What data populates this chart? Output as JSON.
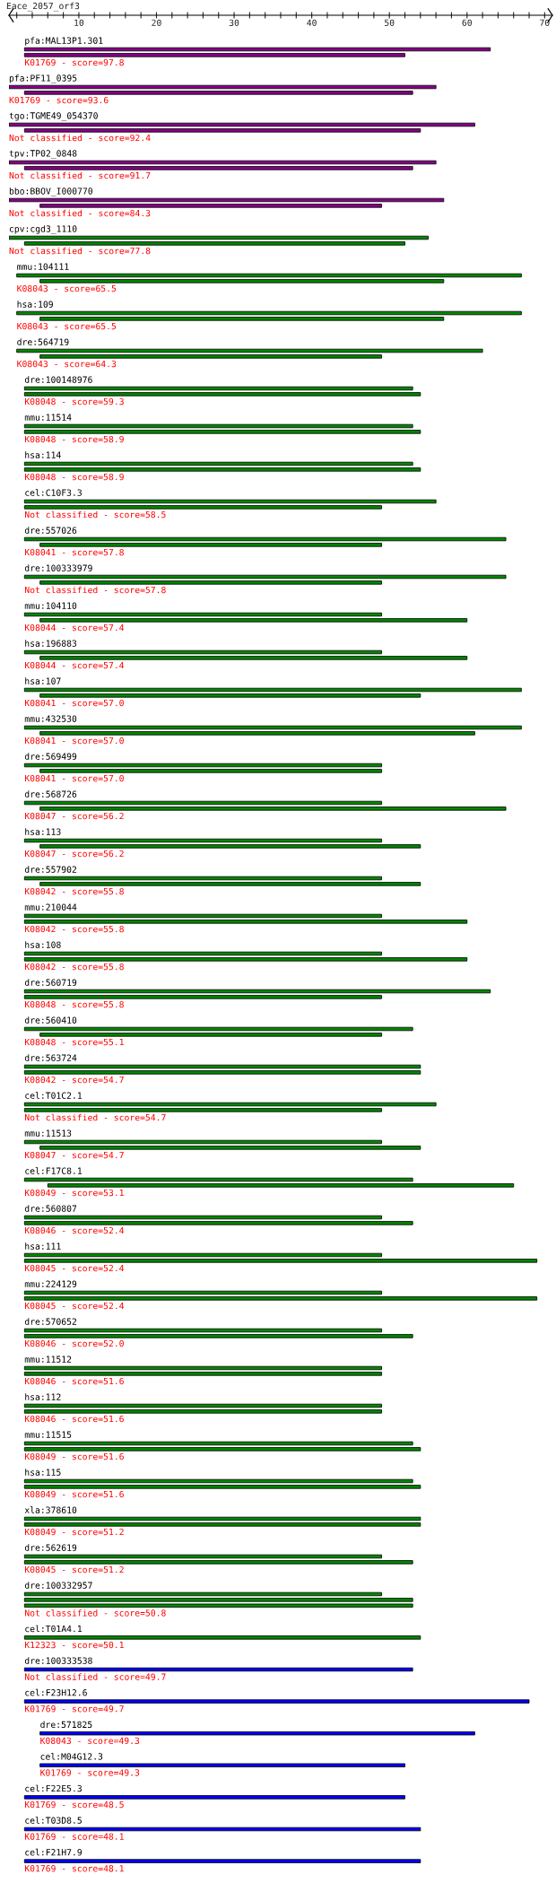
{
  "chart_data": {
    "type": "bar",
    "orientation": "horizontal",
    "title": "Eace_2057_orf3",
    "xlim": [
      1,
      71
    ],
    "xticks": [
      {
        "value": 2,
        "label": null
      },
      {
        "value": 4,
        "label": null
      },
      {
        "value": 6,
        "label": null
      },
      {
        "value": 8,
        "label": null
      },
      10,
      {
        "value": 12,
        "label": null
      },
      {
        "value": 14,
        "label": null
      },
      {
        "value": 16,
        "label": null
      },
      {
        "value": 18,
        "label": null
      },
      20,
      {
        "value": 22,
        "label": null
      },
      {
        "value": 24,
        "label": null
      },
      {
        "value": 26,
        "label": null
      },
      {
        "value": 28,
        "label": null
      },
      30,
      {
        "value": 32,
        "label": null
      },
      {
        "value": 34,
        "label": null
      },
      {
        "value": 36,
        "label": null
      },
      {
        "value": 38,
        "label": null
      },
      40,
      {
        "value": 42,
        "label": null
      },
      {
        "value": 44,
        "label": null
      },
      {
        "value": 46,
        "label": null
      },
      {
        "value": 48,
        "label": null
      },
      50,
      {
        "value": 52,
        "label": null
      },
      {
        "value": 54,
        "label": null
      },
      {
        "value": 56,
        "label": null
      },
      {
        "value": 58,
        "label": null
      },
      60,
      {
        "value": 62,
        "label": null
      },
      {
        "value": 64,
        "label": null
      },
      {
        "value": 66,
        "label": null
      },
      {
        "value": 68,
        "label": null
      },
      70
    ],
    "categories": [
      "pfa:MAL13P1.301",
      "pfa:PF11_0395",
      "tgo:TGME49_054370",
      "tpv:TP02_0848",
      "bbo:BBOV_I000770",
      "cpv:cgd3_1110",
      "mmu:104111",
      "hsa:109",
      "dre:564719",
      "dre:100148976",
      "mmu:11514",
      "hsa:114",
      "cel:C10F3.3",
      "dre:557026",
      "dre:100333979",
      "mmu:104110",
      "hsa:196883",
      "hsa:107",
      "mmu:432530",
      "dre:569499",
      "dre:568726",
      "hsa:113",
      "dre:557902",
      "mmu:210044",
      "hsa:108",
      "dre:560719",
      "dre:560410",
      "dre:563724",
      "cel:T01C2.1",
      "mmu:11513",
      "cel:F17C8.1",
      "dre:560807",
      "hsa:111",
      "mmu:224129",
      "dre:570652",
      "mmu:11512",
      "hsa:112",
      "mmu:11515",
      "hsa:115",
      "xla:378610",
      "dre:562619",
      "dre:100332957",
      "cel:T01A4.1",
      "dre:100333538",
      "cel:F23H12.6",
      "dre:571825",
      "cel:M04G12.3",
      "cel:F22E5.3",
      "cel:T03D8.5",
      "cel:F21H7.9"
    ],
    "series": [
      {
        "base": [
          3,
          1,
          1,
          1,
          1,
          1,
          2,
          2,
          2,
          3,
          3,
          3,
          3,
          3,
          3,
          3,
          3,
          3,
          3,
          3,
          3,
          3,
          3,
          3,
          3,
          3,
          3,
          3,
          3,
          3,
          3,
          3,
          3,
          3,
          3,
          3,
          3,
          3,
          3,
          3,
          3,
          3,
          3,
          3,
          3,
          5,
          5,
          3,
          3,
          3
        ],
        "values": [
          60,
          55,
          60,
          55,
          56,
          54,
          65,
          65,
          60,
          50,
          50,
          50,
          53,
          62,
          62,
          46,
          46,
          64,
          64,
          46,
          46,
          46,
          46,
          46,
          46,
          60,
          50,
          51,
          53,
          46,
          50,
          46,
          46,
          46,
          46,
          46,
          46,
          50,
          50,
          51,
          46,
          46,
          51,
          50,
          65,
          56,
          47,
          49,
          51,
          51
        ],
        "colors": [
          "#880088",
          "#880088",
          "#880088",
          "#880088",
          "#880088",
          "#008800",
          "#008800",
          "#008800",
          "#008800",
          "#008800",
          "#008800",
          "#008800",
          "#008800",
          "#008800",
          "#008800",
          "#008800",
          "#008800",
          "#008800",
          "#008800",
          "#008800",
          "#008800",
          "#008800",
          "#008800",
          "#008800",
          "#008800",
          "#008800",
          "#008800",
          "#008800",
          "#008800",
          "#008800",
          "#008800",
          "#008800",
          "#008800",
          "#008800",
          "#008800",
          "#008800",
          "#008800",
          "#008800",
          "#008800",
          "#008800",
          "#008800",
          "#008800",
          "#008800",
          "#0000ff",
          "#0000ff",
          "#0000ff",
          "#0000ff",
          "#0000ff",
          "#0000ff",
          "#0000ff"
        ]
      },
      {
        "base": [
          3,
          3,
          3,
          3,
          5,
          3,
          5,
          5,
          5,
          3,
          3,
          3,
          3,
          5,
          5,
          5,
          5,
          5,
          5,
          5,
          5,
          5,
          5,
          3,
          3,
          3,
          5,
          3,
          3,
          5,
          6,
          3,
          3,
          3,
          3,
          3,
          3,
          3,
          3,
          3,
          3,
          3,
          null,
          null,
          null,
          null,
          null,
          null,
          null,
          null
        ],
        "values": [
          49,
          50,
          51,
          50,
          44,
          49,
          52,
          52,
          44,
          51,
          51,
          51,
          46,
          44,
          44,
          55,
          55,
          49,
          56,
          44,
          60,
          49,
          49,
          57,
          57,
          46,
          44,
          51,
          46,
          49,
          60,
          50,
          66,
          66,
          50,
          46,
          46,
          51,
          51,
          51,
          50,
          50,
          null,
          null,
          null,
          null,
          null,
          null,
          null,
          null
        ],
        "colors": [
          "#880088",
          "#880088",
          "#880088",
          "#880088",
          "#880088",
          "#008800",
          "#008800",
          "#008800",
          "#008800",
          "#008800",
          "#008800",
          "#008800",
          "#008800",
          "#008800",
          "#008800",
          "#008800",
          "#008800",
          "#008800",
          "#008800",
          "#008800",
          "#008800",
          "#008800",
          "#008800",
          "#008800",
          "#008800",
          "#008800",
          "#008800",
          "#008800",
          "#008800",
          "#008800",
          "#008800",
          "#008800",
          "#008800",
          "#008800",
          "#008800",
          "#008800",
          "#008800",
          "#008800",
          "#008800",
          "#008800",
          "#008800",
          "#008800",
          null,
          null,
          null,
          null,
          null,
          null,
          null,
          null
        ]
      },
      {
        "base": [
          null,
          null,
          null,
          null,
          null,
          null,
          null,
          null,
          null,
          null,
          null,
          null,
          null,
          null,
          null,
          null,
          null,
          null,
          null,
          null,
          null,
          null,
          null,
          null,
          null,
          null,
          null,
          null,
          null,
          null,
          null,
          null,
          null,
          null,
          null,
          null,
          null,
          null,
          null,
          null,
          null,
          3,
          null,
          null,
          null,
          null,
          null,
          null,
          null,
          null
        ],
        "values": [
          null,
          null,
          null,
          null,
          null,
          null,
          null,
          null,
          null,
          null,
          null,
          null,
          null,
          null,
          null,
          null,
          null,
          null,
          null,
          null,
          null,
          null,
          null,
          null,
          null,
          null,
          null,
          null,
          null,
          null,
          null,
          null,
          null,
          null,
          null,
          null,
          null,
          null,
          null,
          null,
          null,
          50,
          null,
          null,
          null,
          null,
          null,
          null,
          null,
          null
        ],
        "colors": [
          null,
          null,
          null,
          null,
          null,
          null,
          null,
          null,
          null,
          null,
          null,
          null,
          null,
          null,
          null,
          null,
          null,
          null,
          null,
          null,
          null,
          null,
          null,
          null,
          null,
          null,
          null,
          null,
          null,
          null,
          null,
          null,
          null,
          null,
          null,
          null,
          null,
          null,
          null,
          null,
          null,
          "#008800",
          null,
          null,
          null,
          null,
          null,
          null,
          null,
          null
        ]
      }
    ],
    "annotations": [
      "K01769 - score=97.8",
      "K01769 - score=93.6",
      "Not classified - score=92.4",
      "Not classified - score=91.7",
      "Not classified - score=84.3",
      "Not classified - score=77.8",
      "K08043 - score=65.5",
      "K08043 - score=65.5",
      "K08043 - score=64.3",
      "K08048 - score=59.3",
      "K08048 - score=58.9",
      "K08048 - score=58.9",
      "Not classified - score=58.5",
      "K08041 - score=57.8",
      "Not classified - score=57.8",
      "K08044 - score=57.4",
      "K08044 - score=57.4",
      "K08041 - score=57.0",
      "K08041 - score=57.0",
      "K08041 - score=57.0",
      "K08047 - score=56.2",
      "K08047 - score=56.2",
      "K08042 - score=55.8",
      "K08042 - score=55.8",
      "K08042 - score=55.8",
      "K08048 - score=55.8",
      "K08048 - score=55.1",
      "K08042 - score=54.7",
      "Not classified - score=54.7",
      "K08047 - score=54.7",
      "K08049 - score=53.1",
      "K08046 - score=52.4",
      "K08045 - score=52.4",
      "K08045 - score=52.4",
      "K08046 - score=52.0",
      "K08046 - score=51.6",
      "K08046 - score=51.6",
      "K08049 - score=51.6",
      "K08049 - score=51.6",
      "K08049 - score=51.2",
      "K08045 - score=51.2",
      "Not classified - score=50.8",
      "K12323 - score=50.1",
      "Not classified - score=49.7",
      "K01769 - score=49.7",
      "K08043 - score=49.3",
      "K01769 - score=49.3",
      "K01769 - score=48.5",
      "K01769 - score=48.1",
      "K01769 - score=48.1"
    ]
  }
}
